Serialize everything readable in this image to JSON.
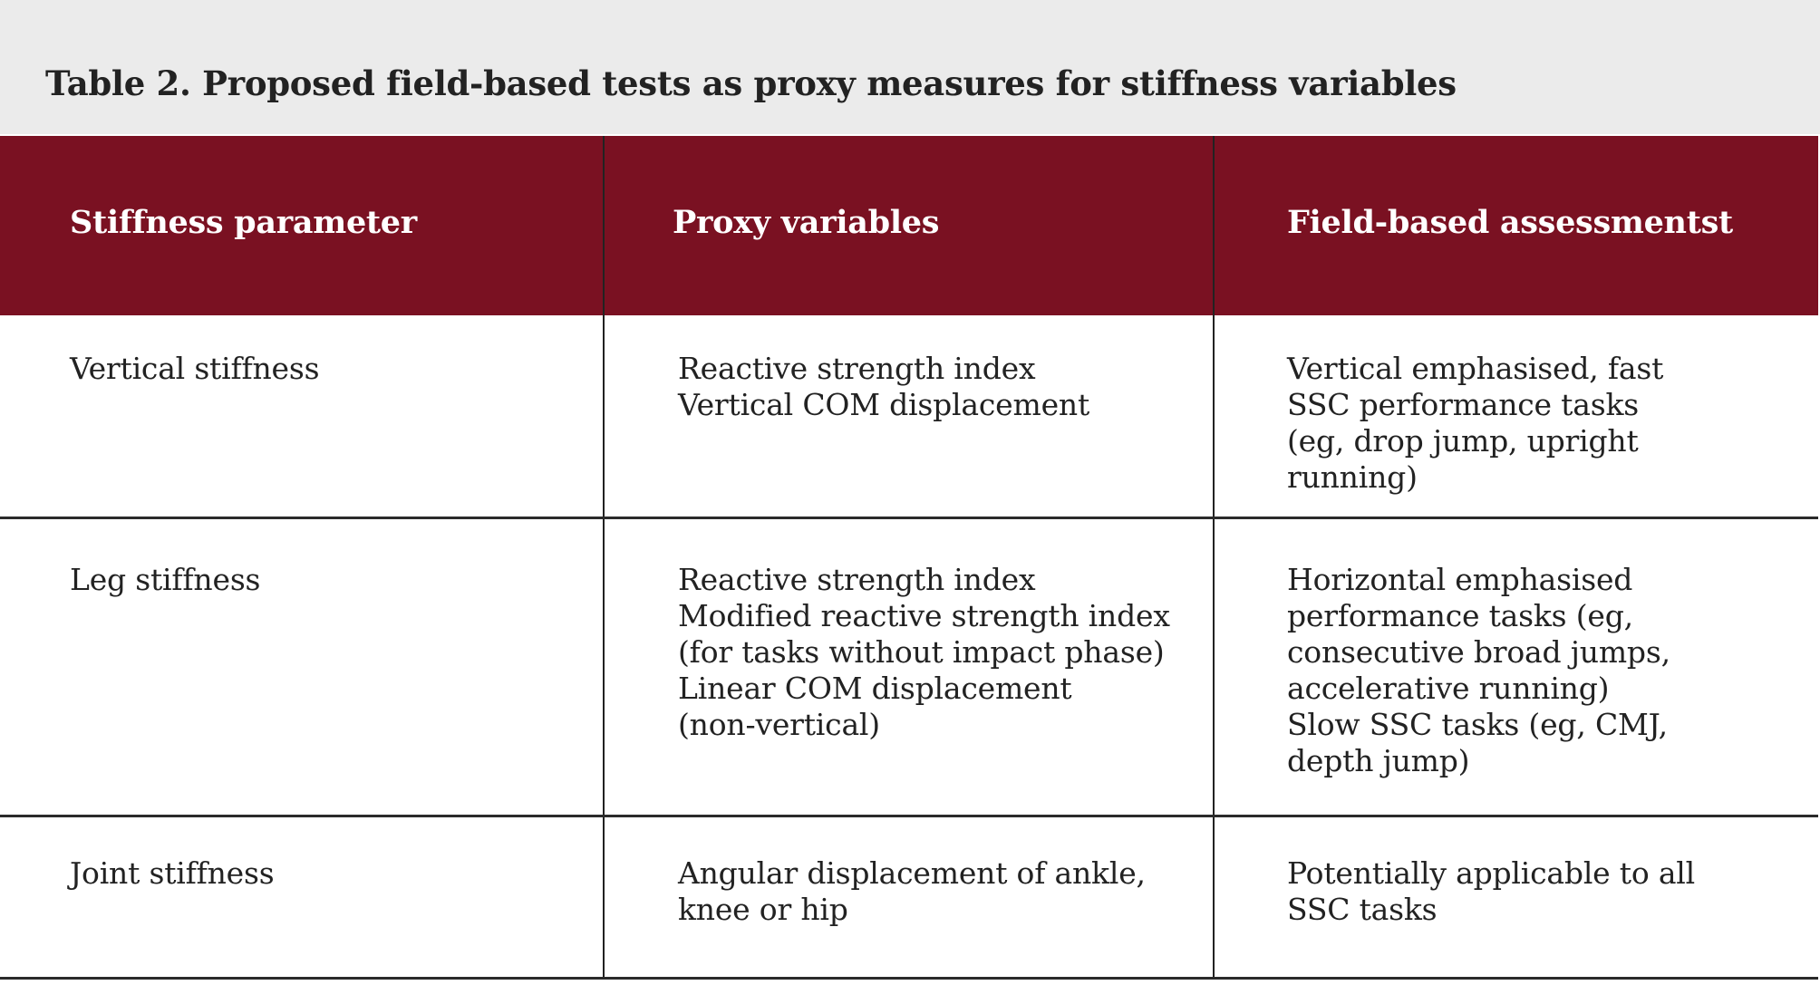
{
  "title": "Table 2. Proposed field-based tests as proxy measures for stiffness variables",
  "colors": {
    "header_bg": "#7a1122",
    "title_band_bg": "#ebebeb"
  },
  "columns": [
    "Stiffness parameter",
    "Proxy variables",
    "Field-based assessmentst"
  ],
  "rows": [
    {
      "parameter": "Vertical stiffness",
      "proxy": "Reactive strength index\nVertical COM displacement",
      "assessment": "Vertical emphasised, fast\nSSC performance tasks\n(eg, drop jump, upright\nrunning)"
    },
    {
      "parameter": "Leg stiffness",
      "proxy": "Reactive strength index\nModified reactive strength index\n(for tasks without impact phase)\nLinear COM displacement\n(non-vertical)",
      "assessment": "Horizontal emphasised\nperformance tasks (eg,\nconsecutive broad jumps,\naccelerative running)\nSlow SSC tasks (eg, CMJ,\ndepth jump)"
    },
    {
      "parameter": "Joint stiffness",
      "proxy": "Angular displacement of ankle,\nknee or hip",
      "assessment": "Potentially applicable to all\nSSC tasks"
    }
  ]
}
